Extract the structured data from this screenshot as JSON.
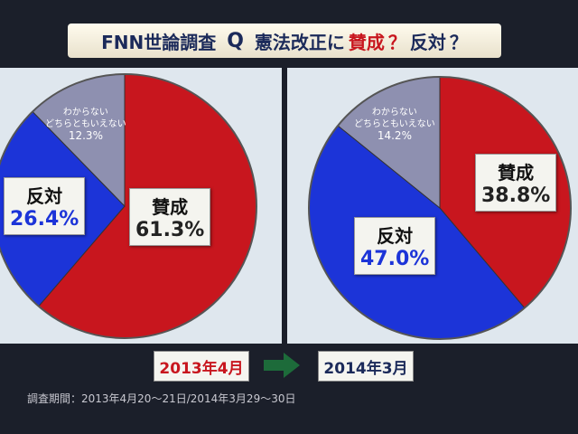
{
  "header": {
    "source": "FNN世論調査",
    "q": "Q",
    "question": [
      "憲法改正に",
      "賛成",
      "？",
      "反対",
      "？"
    ]
  },
  "chart_data": [
    {
      "type": "pie",
      "title": "2013年4月",
      "categories": [
        "賛成",
        "反対",
        "わからない\nどちらともいえない"
      ],
      "values": [
        61.3,
        26.4,
        12.3
      ],
      "value_labels": [
        "61.3%",
        "26.4%",
        "12.3%"
      ],
      "colors": [
        "#c8161e",
        "#1c34d8",
        "#8e90b0"
      ]
    },
    {
      "type": "pie",
      "title": "2014年3月",
      "categories": [
        "賛成",
        "反対",
        "わからない\nどちらともいえない"
      ],
      "values": [
        38.8,
        47.0,
        14.2
      ],
      "value_labels": [
        "38.8%",
        "47.0%",
        "14.2%"
      ],
      "colors": [
        "#c8161e",
        "#1c34d8",
        "#8e90b0"
      ]
    }
  ],
  "footer": {
    "period": "調査期間：2013年4月20～21日/2014年3月29～30日"
  }
}
